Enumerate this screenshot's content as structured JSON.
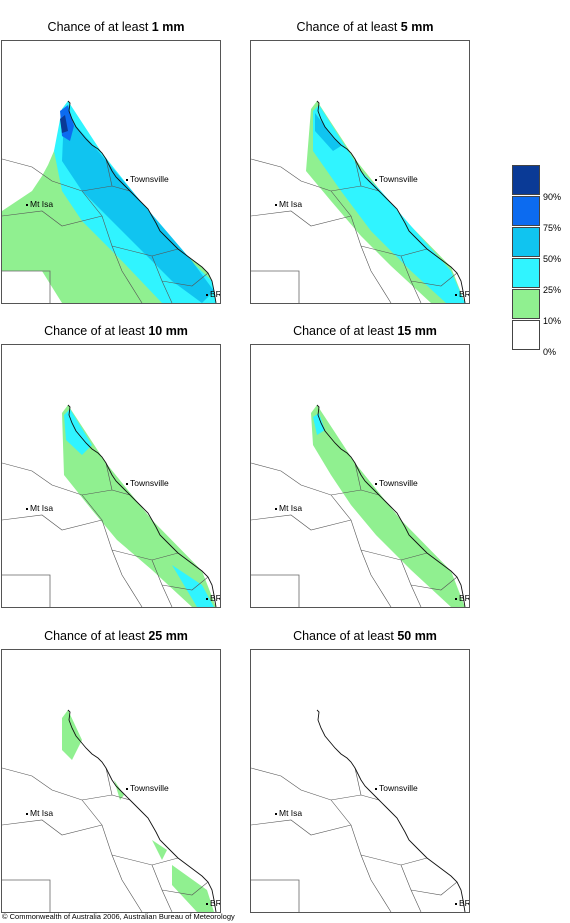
{
  "panels": [
    {
      "title_prefix": "Chance of at least ",
      "amount": "1 mm",
      "level": 1
    },
    {
      "title_prefix": "Chance of at least ",
      "amount": "5 mm",
      "level": 2
    },
    {
      "title_prefix": "Chance of at least ",
      "amount": "10 mm",
      "level": 3
    },
    {
      "title_prefix": "Chance of at least ",
      "amount": "15 mm",
      "level": 4
    },
    {
      "title_prefix": "Chance of at least ",
      "amount": "25 mm",
      "level": 5
    },
    {
      "title_prefix": "Chance of at least ",
      "amount": "50 mm",
      "level": 6
    }
  ],
  "places": {
    "townsville": "Townsville",
    "mt_isa": "Mt Isa",
    "brisbane": "BRIS"
  },
  "legend": {
    "ticks": [
      "90%",
      "75%",
      "50%",
      "25%",
      "10%",
      "0%"
    ],
    "colors": [
      "#0a3a96",
      "#0c6bf0",
      "#10c4f0",
      "#30f4ff",
      "#90f090",
      "#ffffff"
    ]
  },
  "copyright": "© Commonwealth of Australia 2006, Australian Bureau of Meteorology"
}
